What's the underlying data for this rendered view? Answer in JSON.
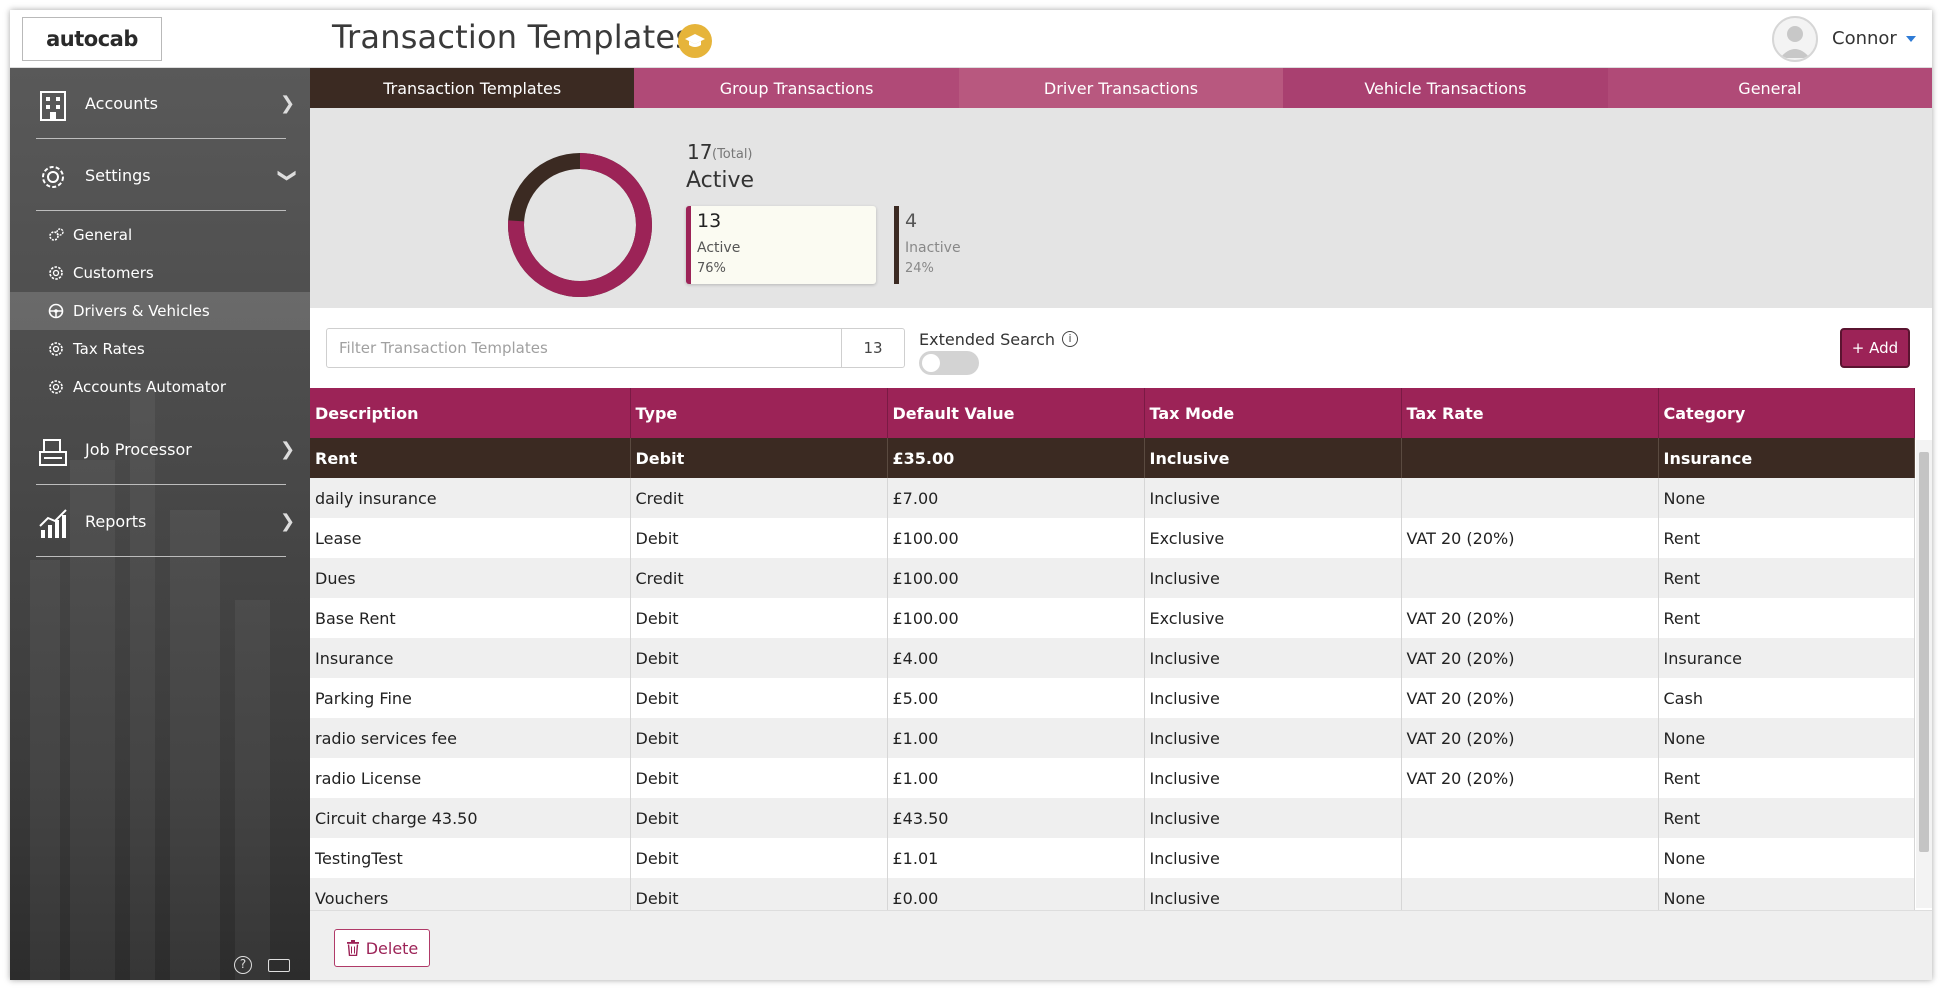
{
  "app": {
    "logo_text": "autocab",
    "page_title": "Transaction Templates",
    "user_name": "Connor"
  },
  "colors": {
    "brand": "#9c2357",
    "dark": "#3b2a22",
    "accent_badge": "#e6b43a"
  },
  "sidebar": {
    "main_items": [
      {
        "label": "Accounts",
        "icon": "building-icon"
      },
      {
        "label": "Settings",
        "icon": "gear-icon"
      },
      {
        "label": "Job Processor",
        "icon": "cash-register-icon"
      },
      {
        "label": "Reports",
        "icon": "chart-icon"
      }
    ],
    "settings_sub_items": [
      {
        "label": "General",
        "icon": "gears-icon"
      },
      {
        "label": "Customers",
        "icon": "gear-icon"
      },
      {
        "label": "Drivers & Vehicles",
        "icon": "steering-wheel-icon",
        "active": true
      },
      {
        "label": "Tax Rates",
        "icon": "gear-icon"
      },
      {
        "label": "Accounts Automator",
        "icon": "gear-icon"
      }
    ],
    "footer_help": "?"
  },
  "tabs": [
    {
      "label": "Transaction Templates",
      "active": true
    },
    {
      "label": "Group Transactions"
    },
    {
      "label": "Driver Transactions"
    },
    {
      "label": "Vehicle Transactions"
    },
    {
      "label": "General"
    }
  ],
  "stats": {
    "total": "17",
    "total_label": "(Total)",
    "heading": "Active",
    "active": {
      "count": "13",
      "label": "Active",
      "percent": "76%"
    },
    "inactive": {
      "count": "4",
      "label": "Inactive",
      "percent": "24%"
    },
    "active_fraction": 0.76
  },
  "filter": {
    "placeholder": "Filter Transaction Templates",
    "value": "",
    "count": "13",
    "extended_search_label": "Extended Search",
    "extended_search_on": false,
    "add_label": "+ Add"
  },
  "table": {
    "columns": [
      "Description",
      "Type",
      "Default Value",
      "Tax Mode",
      "Tax Rate",
      "Category"
    ],
    "rows": [
      [
        "Rent",
        "Debit",
        "£35.00",
        "Inclusive",
        "",
        "Insurance"
      ],
      [
        "daily insurance",
        "Credit",
        "£7.00",
        "Inclusive",
        "",
        "None"
      ],
      [
        "Lease",
        "Debit",
        "£100.00",
        "Exclusive",
        "VAT 20 (20%)",
        "Rent"
      ],
      [
        "Dues",
        "Credit",
        "£100.00",
        "Inclusive",
        "",
        "Rent"
      ],
      [
        "Base Rent",
        "Debit",
        "£100.00",
        "Exclusive",
        "VAT 20 (20%)",
        "Rent"
      ],
      [
        "Insurance",
        "Debit",
        "£4.00",
        "Inclusive",
        "VAT 20 (20%)",
        "Insurance"
      ],
      [
        "Parking Fine",
        "Debit",
        "£5.00",
        "Inclusive",
        "VAT 20 (20%)",
        "Cash"
      ],
      [
        "radio services fee",
        "Debit",
        "£1.00",
        "Inclusive",
        "VAT 20 (20%)",
        "None"
      ],
      [
        "radio License",
        "Debit",
        "£1.00",
        "Inclusive",
        "VAT 20 (20%)",
        "Rent"
      ],
      [
        "Circuit charge 43.50",
        "Debit",
        "£43.50",
        "Inclusive",
        "",
        "Rent"
      ],
      [
        "TestingTest",
        "Debit",
        "£1.01",
        "Inclusive",
        "",
        "None"
      ],
      [
        "Vouchers",
        "Debit",
        "£0.00",
        "Inclusive",
        "",
        "None"
      ]
    ],
    "selected_row": 0
  },
  "footer": {
    "delete_label": "Delete"
  }
}
